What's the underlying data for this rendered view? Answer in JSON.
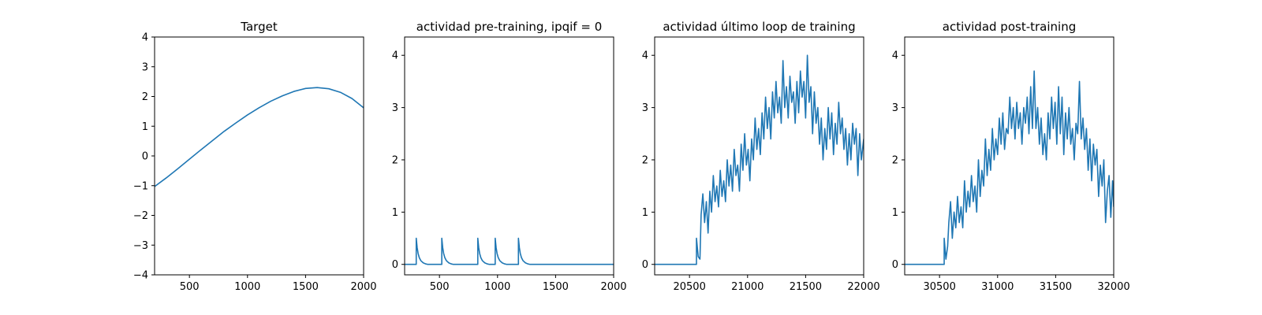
{
  "figure": {
    "background": "#ffffff"
  },
  "chart_data": [
    {
      "type": "line",
      "title": "Target",
      "xlabel": "",
      "ylabel": "",
      "xlim": [
        200,
        2000
      ],
      "ylim": [
        -4,
        4
      ],
      "xticks": [
        500,
        1000,
        1500,
        2000
      ],
      "yticks": [
        -4,
        -3,
        -2,
        -1,
        0,
        1,
        2,
        3,
        4
      ],
      "grid": false,
      "series": [
        {
          "color": "#1f77b4",
          "x": [
            200,
            300,
            400,
            500,
            600,
            700,
            800,
            900,
            1000,
            1100,
            1200,
            1300,
            1400,
            1500,
            1600,
            1700,
            1800,
            1900,
            2000
          ],
          "y": [
            -1.03,
            -0.74,
            -0.43,
            -0.11,
            0.21,
            0.52,
            0.83,
            1.11,
            1.38,
            1.62,
            1.84,
            2.02,
            2.17,
            2.27,
            2.3,
            2.26,
            2.14,
            1.93,
            1.62
          ]
        }
      ]
    },
    {
      "type": "line",
      "title": "actividad pre-training, ipqif = 0",
      "xlabel": "",
      "ylabel": "",
      "xlim": [
        200,
        2000
      ],
      "ylim": [
        -0.2,
        4.35
      ],
      "xticks": [
        500,
        1000,
        1500,
        2000
      ],
      "yticks": [
        0,
        1,
        2,
        3,
        4
      ],
      "grid": false,
      "series": [
        {
          "color": "#1f77b4",
          "x": [
            200,
            300,
            300,
            308,
            316,
            326,
            340,
            360,
            380,
            400,
            520,
            520,
            528,
            536,
            546,
            560,
            580,
            600,
            620,
            830,
            830,
            838,
            846,
            856,
            870,
            890,
            910,
            930,
            980,
            980,
            988,
            996,
            1006,
            1020,
            1040,
            1060,
            1080,
            1180,
            1180,
            1188,
            1196,
            1206,
            1220,
            1240,
            1260,
            1280,
            1400,
            1600,
            1800,
            2000
          ],
          "y": [
            0,
            0,
            0.5,
            0.32,
            0.21,
            0.13,
            0.07,
            0.03,
            0.01,
            0,
            0,
            0.5,
            0.32,
            0.21,
            0.13,
            0.07,
            0.03,
            0.01,
            0,
            0,
            0.5,
            0.32,
            0.21,
            0.13,
            0.07,
            0.03,
            0.01,
            0,
            0,
            0.5,
            0.32,
            0.21,
            0.13,
            0.07,
            0.03,
            0.01,
            0,
            0,
            0.5,
            0.32,
            0.21,
            0.13,
            0.07,
            0.03,
            0.01,
            0,
            0,
            0,
            0,
            0
          ]
        }
      ]
    },
    {
      "type": "line",
      "title": "actividad último loop de training",
      "xlabel": "",
      "ylabel": "",
      "xlim": [
        20200,
        22000
      ],
      "ylim": [
        -0.2,
        4.35
      ],
      "xticks": [
        20500,
        21000,
        21500,
        22000
      ],
      "yticks": [
        0,
        1,
        2,
        3,
        4
      ],
      "grid": false,
      "series": [
        {
          "color": "#1f77b4",
          "x": [
            20200,
            20300,
            20400,
            20500,
            20560,
            20560,
            20575,
            20590,
            20600,
            20615,
            20630,
            20645,
            20660,
            20675,
            20690,
            20705,
            20720,
            20735,
            20750,
            20765,
            20780,
            20795,
            20810,
            20825,
            20840,
            20855,
            20870,
            20885,
            20900,
            20915,
            20930,
            20945,
            20960,
            20975,
            20990,
            21005,
            21020,
            21035,
            21050,
            21065,
            21080,
            21095,
            21110,
            21125,
            21140,
            21155,
            21170,
            21185,
            21200,
            21215,
            21230,
            21245,
            21260,
            21275,
            21290,
            21305,
            21320,
            21335,
            21350,
            21365,
            21380,
            21395,
            21410,
            21425,
            21440,
            21455,
            21470,
            21485,
            21500,
            21515,
            21530,
            21545,
            21560,
            21575,
            21590,
            21605,
            21620,
            21635,
            21650,
            21665,
            21680,
            21695,
            21710,
            21725,
            21740,
            21755,
            21770,
            21785,
            21800,
            21815,
            21830,
            21845,
            21860,
            21875,
            21890,
            21905,
            21920,
            21935,
            21950,
            21965,
            21980,
            22000
          ],
          "y": [
            0,
            0,
            0,
            0,
            0,
            0.5,
            0.15,
            0.1,
            0.95,
            1.35,
            0.8,
            1.2,
            0.6,
            1.4,
            1.0,
            1.7,
            1.2,
            1.5,
            1.1,
            1.8,
            1.3,
            1.6,
            1.2,
            2.0,
            1.5,
            1.9,
            1.4,
            2.2,
            1.7,
            1.9,
            1.4,
            2.3,
            1.8,
            2.5,
            1.9,
            2.2,
            1.6,
            2.4,
            2.0,
            2.8,
            2.2,
            2.6,
            2.1,
            2.9,
            2.4,
            3.2,
            2.6,
            3.0,
            2.4,
            3.3,
            2.8,
            3.5,
            2.9,
            3.2,
            2.7,
            3.9,
            3.0,
            3.4,
            2.8,
            3.6,
            3.1,
            3.3,
            2.7,
            3.5,
            2.9,
            3.7,
            3.2,
            3.5,
            2.8,
            4.0,
            3.1,
            3.4,
            2.5,
            3.3,
            2.7,
            3.0,
            2.3,
            2.8,
            2.0,
            2.6,
            2.2,
            3.0,
            2.4,
            2.9,
            2.1,
            2.7,
            2.3,
            3.1,
            2.5,
            2.8,
            2.2,
            2.6,
            1.9,
            2.5,
            2.0,
            2.7,
            2.3,
            2.6,
            1.7,
            2.5,
            2.0,
            2.4
          ]
        }
      ]
    },
    {
      "type": "line",
      "title": "actividad post-training",
      "xlabel": "",
      "ylabel": "",
      "xlim": [
        30200,
        32000
      ],
      "ylim": [
        -0.2,
        4.35
      ],
      "xticks": [
        30500,
        31000,
        31500,
        32000
      ],
      "yticks": [
        0,
        1,
        2,
        3,
        4
      ],
      "grid": false,
      "series": [
        {
          "color": "#1f77b4",
          "x": [
            30200,
            30300,
            30400,
            30500,
            30540,
            30540,
            30555,
            30570,
            30580,
            30595,
            30610,
            30625,
            30640,
            30655,
            30670,
            30685,
            30700,
            30715,
            30730,
            30745,
            30760,
            30775,
            30790,
            30805,
            30820,
            30835,
            30850,
            30865,
            30880,
            30895,
            30910,
            30925,
            30940,
            30955,
            30970,
            30985,
            31000,
            31015,
            31030,
            31045,
            31060,
            31075,
            31090,
            31105,
            31120,
            31135,
            31150,
            31165,
            31180,
            31195,
            31210,
            31225,
            31240,
            31255,
            31270,
            31285,
            31300,
            31315,
            31330,
            31345,
            31360,
            31375,
            31390,
            31405,
            31420,
            31435,
            31450,
            31465,
            31480,
            31495,
            31510,
            31525,
            31540,
            31555,
            31570,
            31585,
            31600,
            31615,
            31630,
            31645,
            31660,
            31675,
            31690,
            31705,
            31720,
            31735,
            31750,
            31765,
            31780,
            31795,
            31810,
            31825,
            31840,
            31855,
            31870,
            31885,
            31900,
            31915,
            31930,
            31945,
            31960,
            31975,
            31990,
            32000
          ],
          "y": [
            0,
            0,
            0,
            0,
            0,
            0.5,
            0.1,
            0.35,
            0.8,
            1.2,
            0.5,
            1.0,
            0.7,
            1.3,
            0.8,
            1.1,
            0.7,
            1.6,
            1.0,
            1.4,
            1.1,
            1.7,
            1.2,
            1.5,
            1.0,
            2.0,
            1.3,
            1.8,
            1.5,
            2.4,
            1.7,
            2.2,
            1.8,
            2.6,
            2.0,
            2.4,
            2.1,
            2.8,
            2.3,
            2.9,
            2.2,
            2.6,
            2.5,
            3.2,
            2.6,
            3.0,
            2.4,
            3.1,
            2.6,
            2.9,
            2.3,
            3.0,
            2.7,
            3.2,
            2.5,
            3.4,
            2.6,
            3.7,
            2.6,
            3.0,
            2.3,
            2.8,
            2.1,
            2.5,
            2.0,
            2.9,
            2.4,
            3.2,
            2.6,
            3.1,
            2.3,
            3.4,
            2.5,
            3.2,
            2.1,
            2.9,
            2.4,
            3.0,
            2.3,
            2.6,
            2.0,
            2.7,
            2.5,
            3.5,
            2.4,
            2.8,
            2.2,
            2.6,
            1.8,
            2.4,
            1.6,
            2.3,
            1.9,
            2.2,
            1.3,
            1.9,
            1.5,
            2.0,
            0.8,
            1.4,
            1.7,
            0.9,
            1.6,
            1.1
          ]
        }
      ]
    }
  ]
}
